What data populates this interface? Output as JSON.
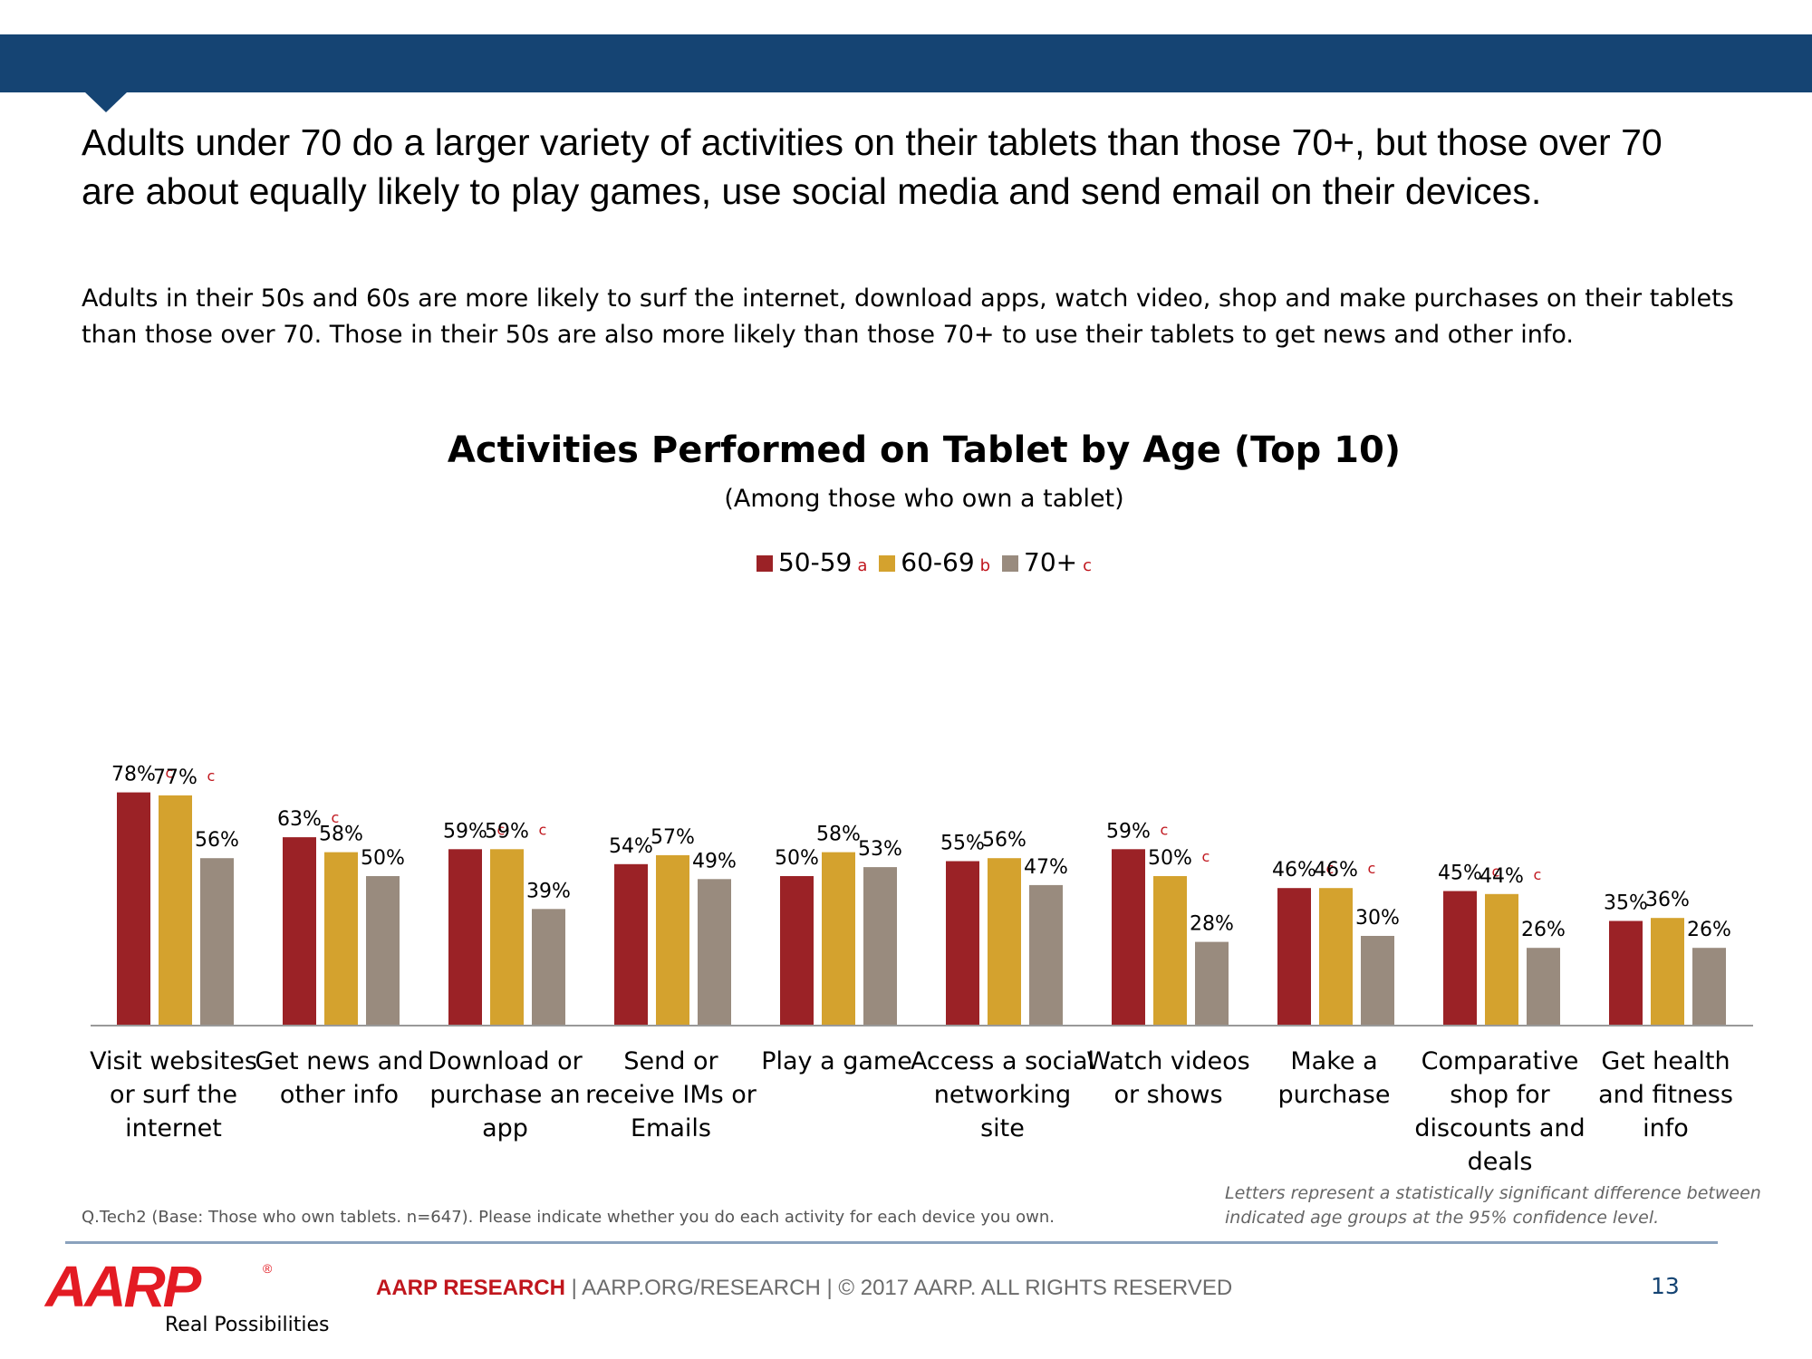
{
  "headline": "Adults under 70 do a larger variety of activities on their tablets than those 70+, but those over 70 are about equally likely to play games, use social media and send email on their devices.",
  "subhead": "Adults in their 50s and 60s are more likely to surf the internet, download apps, watch video, shop and make purchases on their tablets than those over 70. Those in their 50s are also more likely than those 70+ to use their tablets to get news and other info.",
  "chart_data": {
    "type": "bar",
    "title": "Activities Performed on Tablet by Age (Top 10)",
    "subtitle": "(Among those who own a tablet)",
    "xlabel": "",
    "ylabel": "",
    "ylim": [
      0,
      100
    ],
    "grid": false,
    "legend_position": "top-center",
    "categories": [
      "Visit websites or surf the internet",
      "Get news and other info",
      "Download or purchase an app",
      "Send or receive IMs or Emails",
      "Play a game",
      "Access a social networking site",
      "Watch videos or shows",
      "Make a purchase",
      "Comparative shop for discounts and deals",
      "Get health and fitness info"
    ],
    "category_lines": [
      [
        "Visit websites",
        "or surf the",
        "internet"
      ],
      [
        "Get news and",
        "other info"
      ],
      [
        "Download or",
        "purchase an",
        "app"
      ],
      [
        "Send or",
        "receive IMs or",
        "Emails"
      ],
      [
        "Play a game"
      ],
      [
        "Access a social",
        "networking",
        "site"
      ],
      [
        "Watch videos",
        "or shows"
      ],
      [
        "Make a",
        "purchase"
      ],
      [
        "Comparative",
        "shop for",
        "discounts and",
        "deals"
      ],
      [
        "Get health",
        "and fitness",
        "info"
      ]
    ],
    "series": [
      {
        "name": "50-59",
        "letter": "a",
        "color": "#9b2226",
        "values": [
          78,
          63,
          59,
          54,
          50,
          55,
          59,
          46,
          45,
          35
        ],
        "labels": [
          "78%",
          "63%",
          "59%",
          "54%",
          "50%",
          "55%",
          "59%",
          "46%",
          "45%",
          "35%"
        ],
        "sig": [
          "c",
          "c",
          "c",
          "",
          "",
          "",
          "c",
          "c",
          "c",
          ""
        ]
      },
      {
        "name": "60-69",
        "letter": "b",
        "color": "#d4a22e",
        "values": [
          77,
          58,
          59,
          57,
          58,
          56,
          50,
          46,
          44,
          36
        ],
        "labels": [
          "77%",
          "58%",
          "59%",
          "57%",
          "58%",
          "56%",
          "50%",
          "46%",
          "44%",
          "36%"
        ],
        "sig": [
          "c",
          "",
          "c",
          "",
          "",
          "",
          "c",
          "c",
          "c",
          ""
        ]
      },
      {
        "name": "70+",
        "letter": "c",
        "color": "#998b7e",
        "values": [
          56,
          50,
          39,
          49,
          53,
          47,
          28,
          30,
          26,
          26
        ],
        "labels": [
          "56%",
          "50%",
          "39%",
          "49%",
          "53%",
          "47%",
          "28%",
          "30%",
          "26%",
          "26%"
        ],
        "sig": [
          "",
          "",
          "",
          "",
          "",
          "",
          "",
          "",
          "",
          ""
        ]
      }
    ]
  },
  "footnote": "Q.Tech2 (Base: Those who own tablets. n=647). Please indicate whether you do each activity for each device you own.",
  "sig_note": "Letters represent a statistically significant difference between indicated age groups at the 95% confidence level.",
  "footer": {
    "logo": "AARP",
    "logo_mark": "®",
    "tagline": "Real Possibilities",
    "research": "AARP RESEARCH",
    "separator": "|",
    "url": "AARP.ORG/RESEARCH",
    "copyright": "© 2017 AARP. ALL RIGHTS RESERVED",
    "page_number": "13"
  }
}
